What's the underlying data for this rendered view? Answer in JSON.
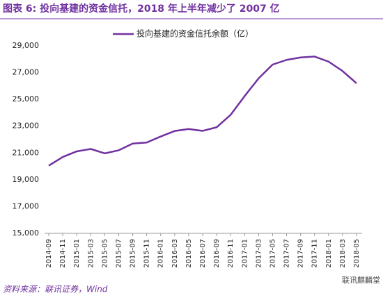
{
  "chart_data": {
    "type": "line",
    "title": "图表 6: 投向基建的资金信托，2018 年上半年减少了 2007 亿",
    "categories": [
      "2014-09",
      "2014-11",
      "2015-01",
      "2015-03",
      "2015-05",
      "2015-07",
      "2015-09",
      "2015-11",
      "2016-01",
      "2016-03",
      "2016-05",
      "2016-07",
      "2016-09",
      "2016-11",
      "2017-01",
      "2017-03",
      "2017-05",
      "2017-07",
      "2017-09",
      "2017-11",
      "2018-01",
      "2018-03",
      "2018-05"
    ],
    "series": [
      {
        "name": "投向基建的资金信托余额（亿）",
        "color": "#7030a0",
        "values": [
          20050,
          20700,
          21120,
          21300,
          20970,
          21200,
          21700,
          21780,
          22230,
          22640,
          22790,
          22650,
          22920,
          23850,
          25250,
          26570,
          27600,
          27950,
          28130,
          28200,
          27820,
          27120,
          26200
        ]
      }
    ],
    "ylim": [
      15000,
      29000
    ],
    "yticks": [
      {
        "value": 15000,
        "label": "15,000"
      },
      {
        "value": 17000,
        "label": "17,000"
      },
      {
        "value": 19000,
        "label": "19,000"
      },
      {
        "value": 21000,
        "label": "21,000"
      },
      {
        "value": 23000,
        "label": "23,000"
      },
      {
        "value": 25000,
        "label": "25,000"
      },
      {
        "value": 27000,
        "label": "27,000"
      },
      {
        "value": 29000,
        "label": "29,000"
      }
    ],
    "grid": false,
    "legend": "top",
    "source": "资料来源：联讯证券，Wind",
    "watermark": "联讯麒麟堂"
  }
}
